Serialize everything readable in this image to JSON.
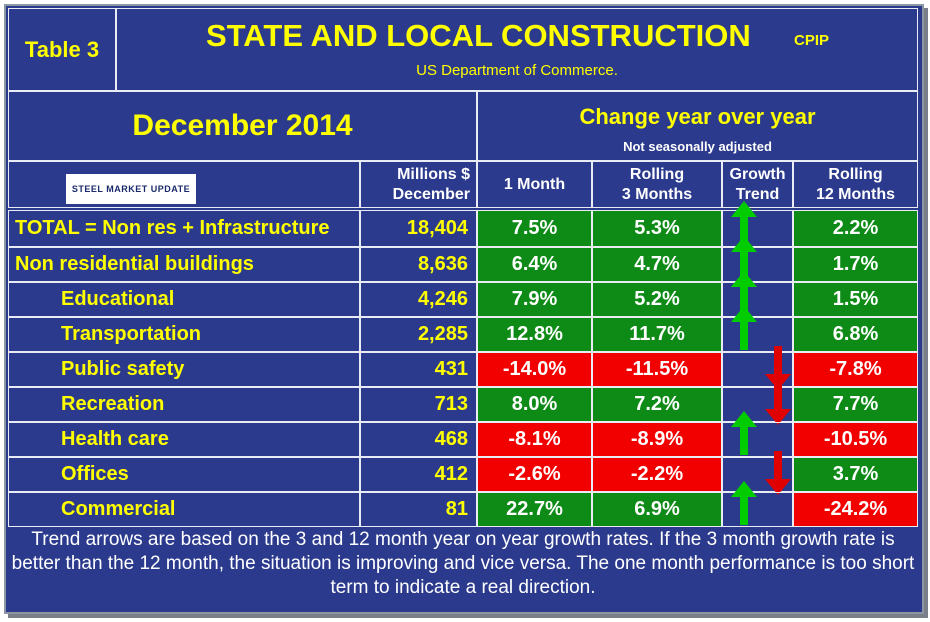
{
  "header": {
    "table_label": "Table 3",
    "title": "STATE AND LOCAL CONSTRUCTION",
    "source_code": "CPIP",
    "source": "US Department of Commerce."
  },
  "period": "December 2014",
  "change_heading": "Change year over year",
  "change_subheading": "Not seasonally adjusted",
  "logo_text": "STEEL MARKET UPDATE",
  "columns": {
    "millions_line1": "Millions $",
    "millions_line2": "December",
    "one_month": "1 Month",
    "rolling3_line1": "Rolling",
    "rolling3_line2": "3 Months",
    "growth_line1": "Growth",
    "growth_line2": "Trend",
    "rolling12_line1": "Rolling",
    "rolling12_line2": "12 Months"
  },
  "rows": [
    {
      "label": "TOTAL = Non res + Infrastructure",
      "millions": "18,404",
      "m1": "7.5%",
      "m3": "5.3%",
      "trend": "up",
      "m12": "2.2%",
      "m1_color": "green",
      "m3_color": "green",
      "m12_color": "green"
    },
    {
      "label": "Non residential buildings",
      "millions": "8,636",
      "m1": "6.4%",
      "m3": "4.7%",
      "trend": "up",
      "m12": "1.7%",
      "m1_color": "green",
      "m3_color": "green",
      "m12_color": "green"
    },
    {
      "label": "Educational",
      "millions": "4,246",
      "m1": "7.9%",
      "m3": "5.2%",
      "trend": "up",
      "m12": "1.5%",
      "m1_color": "green",
      "m3_color": "green",
      "m12_color": "green"
    },
    {
      "label": "Transportation",
      "millions": "2,285",
      "m1": "12.8%",
      "m3": "11.7%",
      "trend": "up",
      "m12": "6.8%",
      "m1_color": "green",
      "m3_color": "green",
      "m12_color": "green"
    },
    {
      "label": "Public safety",
      "millions": "431",
      "m1": "-14.0%",
      "m3": "-11.5%",
      "trend": "down",
      "m12": "-7.8%",
      "m1_color": "red",
      "m3_color": "red",
      "m12_color": "red"
    },
    {
      "label": "Recreation",
      "millions": "713",
      "m1": "8.0%",
      "m3": "7.2%",
      "trend": "down",
      "m12": "7.7%",
      "m1_color": "green",
      "m3_color": "green",
      "m12_color": "green"
    },
    {
      "label": "Health care",
      "millions": "468",
      "m1": "-8.1%",
      "m3": "-8.9%",
      "trend": "up",
      "m12": "-10.5%",
      "m1_color": "red",
      "m3_color": "red",
      "m12_color": "red"
    },
    {
      "label": "Offices",
      "millions": "412",
      "m1": "-2.6%",
      "m3": "-2.2%",
      "trend": "down",
      "m12": "3.7%",
      "m1_color": "red",
      "m3_color": "red",
      "m12_color": "green"
    },
    {
      "label": "Commercial",
      "millions": "81",
      "m1": "22.7%",
      "m3": "6.9%",
      "trend": "up",
      "m12": "-24.2%",
      "m1_color": "green",
      "m3_color": "green",
      "m12_color": "red"
    }
  ],
  "colors": {
    "green": "#0e8b16",
    "red": "#f20000",
    "up_arrow": "#00cc00",
    "down_arrow": "#e00000"
  },
  "footnote": "Trend arrows are based on the 3 and 12 month year on year growth rates. If the 3 month growth rate is better than the 12 month, the situation is improving and vice versa. The one month performance is too short term to indicate a real direction."
}
